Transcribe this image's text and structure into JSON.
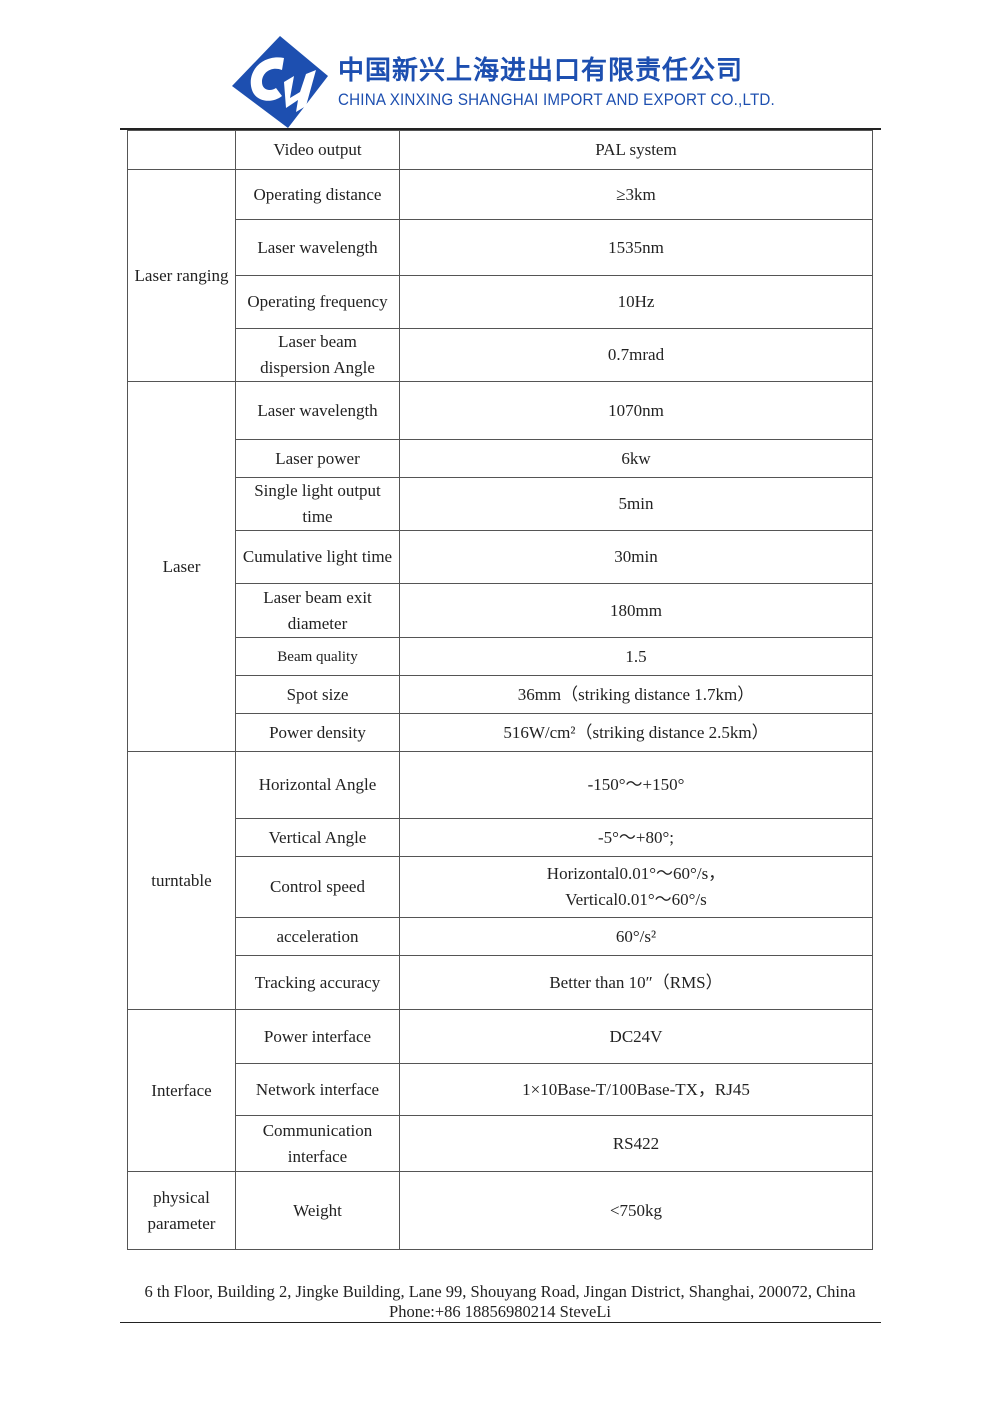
{
  "header": {
    "company_cn": "中国新兴上海进出口有限责任公司",
    "company_en": "CHINA XINXING SHANGHAI IMPORT AND EXPORT CO.,LTD.",
    "logo_letters": "GH",
    "brand_color": "#1d4fb0"
  },
  "table": {
    "groups": [
      {
        "label": "",
        "rows": [
          {
            "param": "Video output",
            "value": "PAL system"
          }
        ]
      },
      {
        "label": "Laser ranging",
        "rows": [
          {
            "param": "Operating distance",
            "value": "≥3km"
          },
          {
            "param": "Laser wavelength",
            "value": "1535nm"
          },
          {
            "param": "Operating frequency",
            "value": "10Hz"
          },
          {
            "param": "Laser beam dispersion Angle",
            "value": "0.7mrad"
          }
        ]
      },
      {
        "label": "Laser",
        "rows": [
          {
            "param": "Laser wavelength",
            "value": "1070nm"
          },
          {
            "param": "Laser power",
            "value": "6kw"
          },
          {
            "param": "Single light output time",
            "value": "5min"
          },
          {
            "param": "Cumulative light time",
            "value": "30min"
          },
          {
            "param": "Laser beam exit diameter",
            "value": "180mm"
          },
          {
            "param": "Beam quality",
            "value": "1.5"
          },
          {
            "param": "Spot size",
            "value": "36mm（striking distance 1.7km）"
          },
          {
            "param": "Power density",
            "value": "516W/cm²（striking distance 2.5km）"
          }
        ]
      },
      {
        "label": "turntable",
        "rows": [
          {
            "param": "Horizontal Angle",
            "value": "-150°～+150°"
          },
          {
            "param": "Vertical Angle",
            "value": "-5°～+80°;"
          },
          {
            "param": "Control speed",
            "value": "Horizontal0.01°～60°/s，\nVertical0.01°～60°/s"
          },
          {
            "param": "acceleration",
            "value": "60°/s²"
          },
          {
            "param": "Tracking accuracy",
            "value": "Better than 10″（RMS）"
          }
        ]
      },
      {
        "label": "Interface",
        "rows": [
          {
            "param": "Power interface",
            "value": "DC24V"
          },
          {
            "param": "Network interface",
            "value": "1×10Base-T/100Base-TX，RJ45"
          },
          {
            "param": "Communication interface",
            "value": "RS422"
          }
        ]
      },
      {
        "label": "physical parameter",
        "rows": [
          {
            "param": "Weight",
            "value": "<750kg"
          }
        ]
      }
    ]
  },
  "footer": {
    "address": "6 th Floor, Building 2, Jingke Building, Lane 99, Shouyang Road, Jingan District, Shanghai, 200072, China",
    "phone": "Phone:+86 18856980214 SteveLi"
  }
}
